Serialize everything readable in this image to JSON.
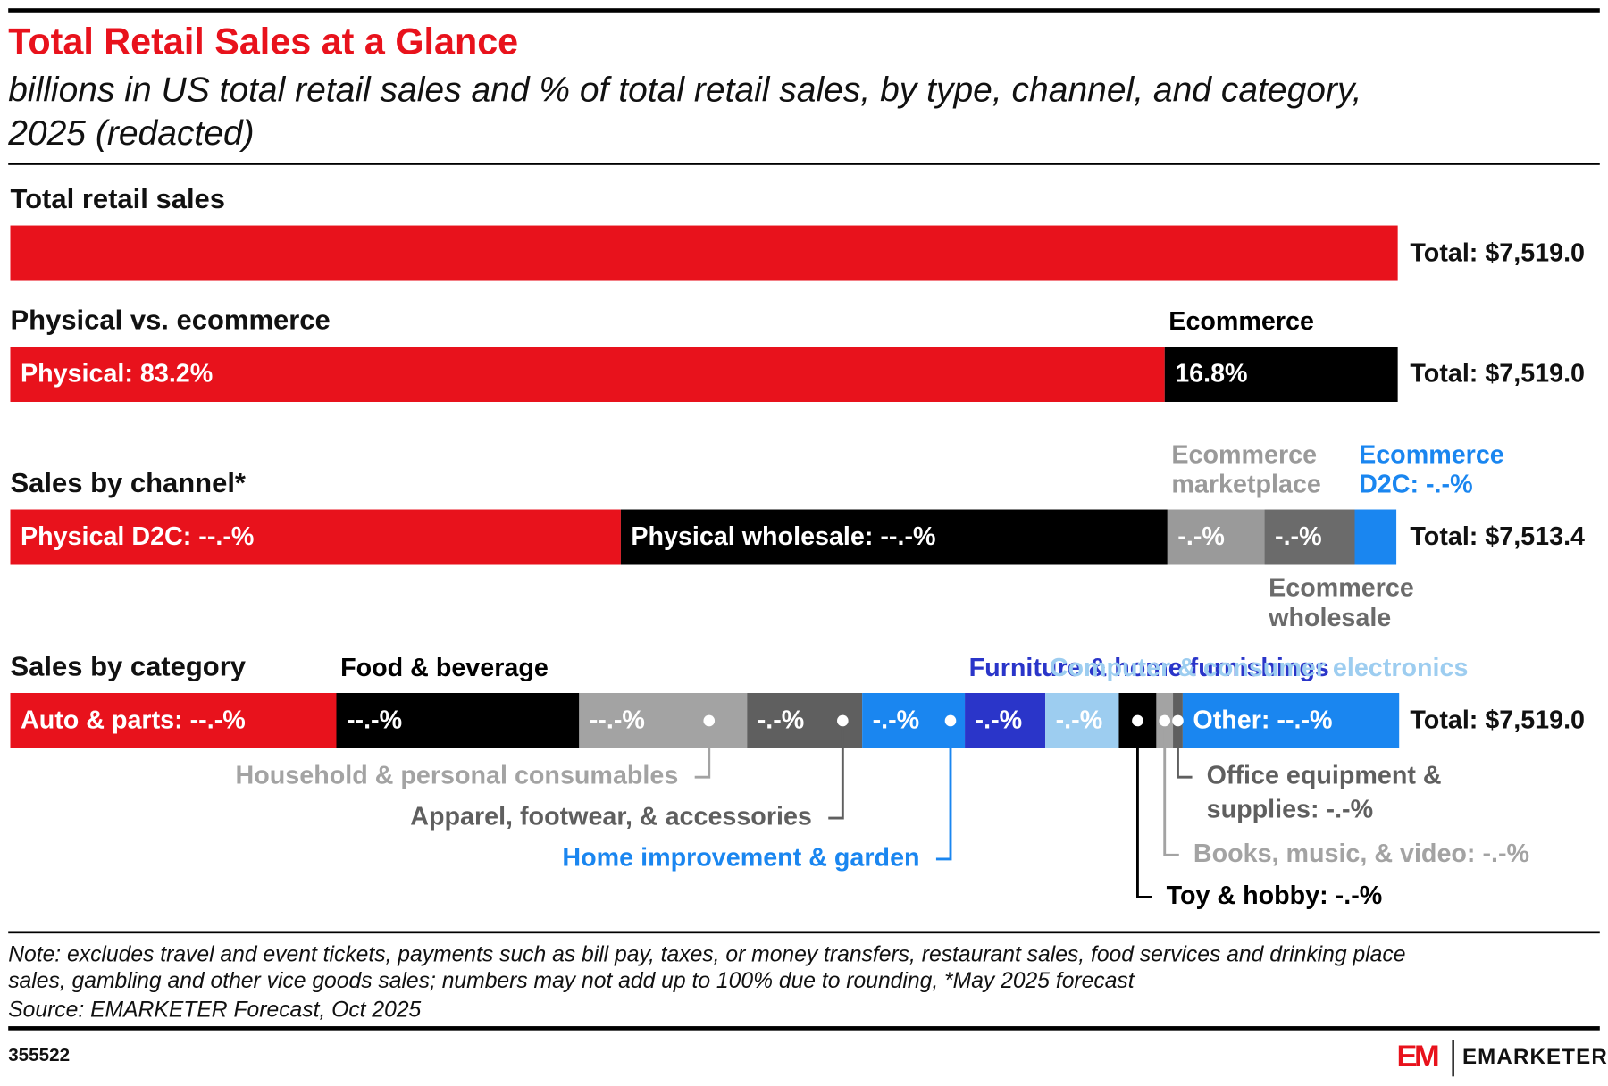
{
  "title": "Total Retail Sales at a Glance",
  "subtitle": [
    "billions in US total retail sales and % of total retail sales, by type, channel, and category,",
    "2025 (redacted)"
  ],
  "chart_data": [
    {
      "type": "bar",
      "title": "Total retail sales",
      "values": [
        7519.0
      ],
      "value_labels": [
        "Total: $7,519.0"
      ],
      "color": "#e8121c"
    },
    {
      "type": "stacked_bar",
      "title": "Physical vs. ecommerce",
      "total": 7519.0,
      "total_label": "Total: $7,519.0",
      "series": [
        {
          "color": "#e8121c",
          "values": [
            83.2
          ],
          "value_labels": [
            "Physical: 83.2%"
          ]
        },
        {
          "name": [
            "Ecommerce"
          ],
          "name_at": "above",
          "color": "#000000",
          "values": [
            16.8
          ],
          "value_labels": [
            "16.8%"
          ]
        }
      ]
    },
    {
      "type": "stacked_bar",
      "title": "Sales by channel*",
      "total": 7513.4,
      "total_label": "Total: $7,513.4",
      "series": [
        {
          "color": "#e8121c",
          "values": [
            44.0
          ],
          "value_labels": [
            "Physical D2C: --.-%"
          ]
        },
        {
          "color": "#000000",
          "values": [
            39.4
          ],
          "value_labels": [
            "Physical wholesale: --.-%"
          ]
        },
        {
          "name": [
            "Ecommerce",
            "marketplace"
          ],
          "name_at": "above",
          "color": "#9a9a9a",
          "values": [
            7.0
          ],
          "value_labels": [
            "-.-%"
          ]
        },
        {
          "name": [
            "Ecommerce",
            "wholesale"
          ],
          "name_at": "below",
          "color": "#6b6b6b",
          "values": [
            6.5
          ],
          "value_labels": [
            "-.-%"
          ]
        },
        {
          "name": [
            "Ecommerce",
            "D2C: -.-%"
          ],
          "name_at": "above",
          "color": "#1a86f0",
          "values": [
            3.0
          ]
        }
      ]
    },
    {
      "type": "stacked_bar",
      "title": "Sales by category",
      "total": 7519.0,
      "total_label": "Total: $7,519.0",
      "series": [
        {
          "color": "#e8121c",
          "values": [
            23.5
          ],
          "value_labels": [
            "Auto & parts: --.-%"
          ]
        },
        {
          "name": [
            "Food & beverage"
          ],
          "name_at": "above",
          "color": "#000000",
          "values": [
            17.5
          ],
          "value_labels": [
            "--.-%"
          ]
        },
        {
          "name": [
            "Household & personal consumables"
          ],
          "name_at": "callout",
          "color": "#a3a3a3",
          "values": [
            12.1
          ],
          "value_labels": [
            "--.-%"
          ]
        },
        {
          "name": [
            "Apparel, footwear, & accessories"
          ],
          "name_at": "callout",
          "color": "#5f5f5f",
          "values": [
            8.3
          ],
          "value_labels": [
            "-.-%"
          ]
        },
        {
          "name": [
            "Home improvement & garden"
          ],
          "name_at": "callout",
          "color": "#1a86f0",
          "values": [
            7.4
          ],
          "value_labels": [
            "-.-%"
          ]
        },
        {
          "name": [
            "Furniture & home furnishings"
          ],
          "name_at": "above",
          "color": "#2a35c9",
          "values": [
            5.8
          ],
          "value_labels": [
            "-.-%"
          ]
        },
        {
          "name": [
            "Computer & consumer electronics"
          ],
          "name_at": "above",
          "color": "#9dcdf0",
          "values": [
            5.3
          ],
          "value_labels": [
            "-.-%"
          ]
        },
        {
          "name": [
            "Toy & hobby: -.-%"
          ],
          "name_at": "callout",
          "color": "#000000",
          "values": [
            2.7
          ]
        },
        {
          "name": [
            "Books, music, & video: -.-%"
          ],
          "name_at": "callout",
          "color": "#a3a3a3",
          "values": [
            1.2
          ]
        },
        {
          "name": [
            "Office equipment &",
            "supplies: -.-%"
          ],
          "name_at": "callout",
          "color": "#5f5f5f",
          "values": [
            0.7
          ]
        },
        {
          "color": "#1a86f0",
          "values": [
            15.6
          ],
          "value_labels": [
            "Other: --.-%"
          ]
        }
      ]
    }
  ],
  "note": [
    "Note: excludes travel and event tickets, payments such as bill pay, taxes, or money transfers, restaurant sales, food services and drinking place",
    "sales, gambling and other vice goods sales; numbers may not add up to 100% due to rounding, *May 2025 forecast"
  ],
  "source": "Source: EMARKETER Forecast, Oct 2025",
  "chart_id": "355522",
  "logo_mark": "EM",
  "brand": "EMARKETER"
}
